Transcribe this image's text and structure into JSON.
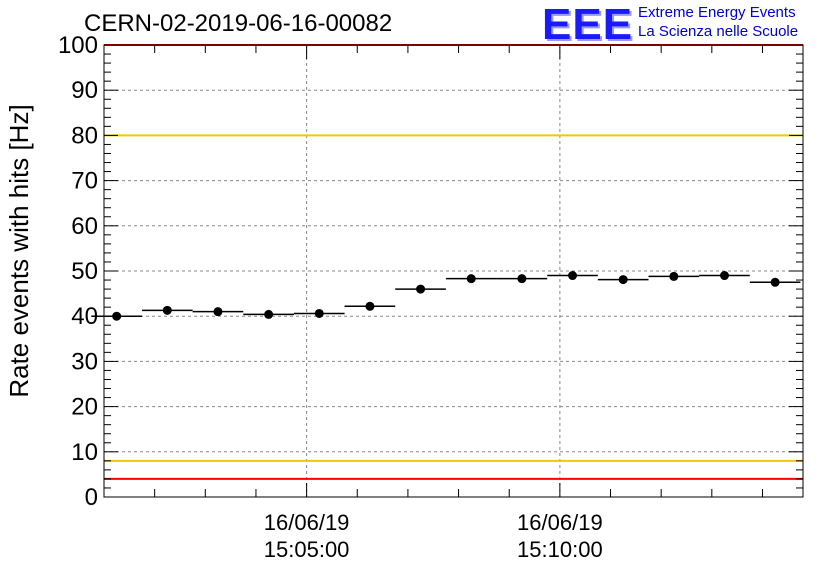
{
  "header": {
    "run_title": "CERN-02-2019-06-16-00082",
    "logo_mark": "EEE",
    "logo_line1": "Extreme Energy Events",
    "logo_line2": "La Scienza nelle Scuole"
  },
  "chart_data": {
    "type": "scatter",
    "title": "CERN-02-2019-06-16-00082",
    "ylabel": "Rate events with hits [Hz]",
    "xlabel": "",
    "ylim": [
      0,
      100
    ],
    "yticks": [
      0,
      10,
      20,
      30,
      40,
      50,
      60,
      70,
      80,
      90,
      100
    ],
    "x_unit": "minutes after 15:00:00 on 16/06/19",
    "xlim": [
      1.0,
      14.8
    ],
    "xticks": [
      {
        "x": 5,
        "date": "16/06/19",
        "time": "15:05:00"
      },
      {
        "x": 10,
        "date": "16/06/19",
        "time": "15:10:00"
      }
    ],
    "grid": true,
    "x_error_halfwidth": 0.33,
    "points": [
      {
        "x": 1.25,
        "y": 40.0
      },
      {
        "x": 2.25,
        "y": 41.3
      },
      {
        "x": 3.25,
        "y": 41.0
      },
      {
        "x": 4.25,
        "y": 40.4
      },
      {
        "x": 5.25,
        "y": 40.6
      },
      {
        "x": 6.25,
        "y": 42.2
      },
      {
        "x": 7.25,
        "y": 46.0
      },
      {
        "x": 8.25,
        "y": 48.3
      },
      {
        "x": 9.25,
        "y": 48.3
      },
      {
        "x": 10.25,
        "y": 49.0
      },
      {
        "x": 11.25,
        "y": 48.1
      },
      {
        "x": 12.25,
        "y": 48.8
      },
      {
        "x": 13.25,
        "y": 49.0
      },
      {
        "x": 14.25,
        "y": 47.5
      }
    ],
    "reference_lines": [
      {
        "y": 100,
        "color": "#ff0000"
      },
      {
        "y": 80,
        "color": "#f0c800"
      },
      {
        "y": 8,
        "color": "#f0c800"
      },
      {
        "y": 4,
        "color": "#ff0000"
      }
    ],
    "colors": {
      "points": "#000000",
      "grid": "#888888",
      "frame": "#000000"
    }
  }
}
